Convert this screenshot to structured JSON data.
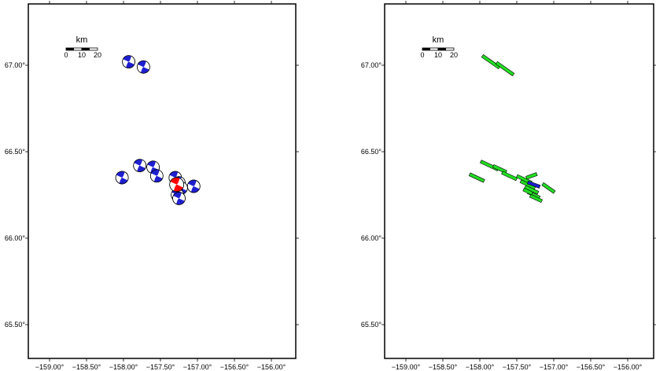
{
  "panels": [
    {
      "id": "left",
      "kind": "focal-mechanisms",
      "lon_ticks": [
        "−159.00°",
        "−158.50°",
        "−158.00°",
        "−157.50°",
        "−157.00°",
        "−156.50°",
        "−156.00°"
      ],
      "lat_ticks": [
        "65.50°",
        "66.00°",
        "66.50°",
        "67.00°"
      ],
      "scale_bar": {
        "unit": "km",
        "labels": [
          "0",
          "10",
          "20"
        ]
      }
    },
    {
      "id": "right",
      "kind": "fault-planes",
      "lon_ticks": [
        "−159.00°",
        "−158.50°",
        "−158.00°",
        "−157.50°",
        "−157.00°",
        "−156.50°",
        "−156.00°"
      ],
      "lat_ticks": [
        "65.50°",
        "66.00°",
        "66.50°",
        "67.00°"
      ],
      "scale_bar": {
        "unit": "km",
        "labels": [
          "0",
          "10",
          "20"
        ]
      }
    }
  ],
  "map_extent": {
    "lon": [
      -159.3,
      -155.6
    ],
    "lat": [
      65.3,
      67.35
    ]
  },
  "colors": {
    "mechanism": "#1f1fd0",
    "highlight": "#ff0000",
    "plane_fill": "#22dd22",
    "plane_highlight": "#1f1fd0",
    "frame": "#000000"
  },
  "mechanisms": [
    {
      "lon": -157.93,
      "lat": 67.02,
      "type": "normal"
    },
    {
      "lon": -157.73,
      "lat": 66.99,
      "type": "normal"
    },
    {
      "lon": -157.78,
      "lat": 66.42,
      "type": "normal"
    },
    {
      "lon": -157.6,
      "lat": 66.41,
      "type": "normal"
    },
    {
      "lon": -157.55,
      "lat": 66.36,
      "type": "normal"
    },
    {
      "lon": -158.02,
      "lat": 66.35,
      "type": "normal"
    },
    {
      "lon": -157.3,
      "lat": 66.35,
      "type": "normal"
    },
    {
      "lon": -157.25,
      "lat": 66.32,
      "type": "normal"
    },
    {
      "lon": -157.05,
      "lat": 66.3,
      "type": "normal"
    },
    {
      "lon": -157.22,
      "lat": 66.29,
      "type": "normal"
    },
    {
      "lon": -157.27,
      "lat": 66.25,
      "type": "normal"
    },
    {
      "lon": -157.25,
      "lat": 66.23,
      "type": "normal"
    },
    {
      "lon": -157.28,
      "lat": 66.31,
      "type": "highlight"
    }
  ],
  "fault_planes": [
    {
      "lon": -157.85,
      "lat": 67.02,
      "strike": 125,
      "len_km": 13,
      "type": "normal"
    },
    {
      "lon": -157.66,
      "lat": 66.98,
      "strike": 125,
      "len_km": 13,
      "type": "normal"
    },
    {
      "lon": -157.87,
      "lat": 66.42,
      "strike": 115,
      "len_km": 12,
      "type": "normal"
    },
    {
      "lon": -157.73,
      "lat": 66.4,
      "strike": 115,
      "len_km": 9,
      "type": "normal"
    },
    {
      "lon": -157.6,
      "lat": 66.36,
      "strike": 115,
      "len_km": 10,
      "type": "normal"
    },
    {
      "lon": -158.04,
      "lat": 66.35,
      "strike": 115,
      "len_km": 10,
      "type": "normal"
    },
    {
      "lon": -157.4,
      "lat": 66.34,
      "strike": 115,
      "len_km": 10,
      "type": "normal"
    },
    {
      "lon": -157.35,
      "lat": 66.31,
      "strike": 115,
      "len_km": 10,
      "type": "normal"
    },
    {
      "lon": -157.3,
      "lat": 66.36,
      "strike": 70,
      "len_km": 7,
      "type": "normal"
    },
    {
      "lon": -157.07,
      "lat": 66.29,
      "strike": 125,
      "len_km": 9,
      "type": "normal"
    },
    {
      "lon": -157.3,
      "lat": 66.28,
      "strike": 115,
      "len_km": 9,
      "type": "normal"
    },
    {
      "lon": -157.27,
      "lat": 66.25,
      "strike": 115,
      "len_km": 8,
      "type": "normal"
    },
    {
      "lon": -157.24,
      "lat": 66.23,
      "strike": 115,
      "len_km": 8,
      "type": "normal"
    },
    {
      "lon": -157.35,
      "lat": 66.27,
      "strike": 115,
      "len_km": 6,
      "type": "normal"
    },
    {
      "lon": -157.27,
      "lat": 66.31,
      "strike": 110,
      "len_km": 8,
      "type": "highlight"
    }
  ]
}
